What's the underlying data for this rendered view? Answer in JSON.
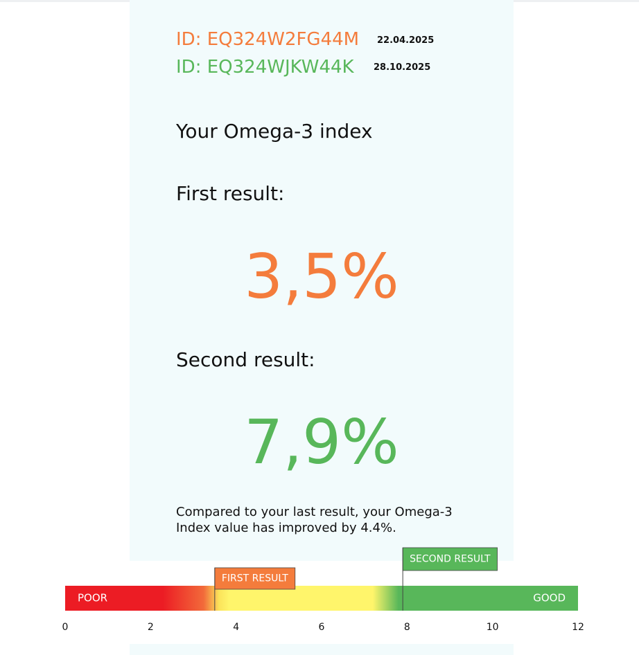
{
  "ids": [
    {
      "id": "ID: EQ324W2FG44M",
      "date": "22.04.2025"
    },
    {
      "id": "ID: EQ324WJKW44K",
      "date": "28.10.2025"
    }
  ],
  "title": "Your Omega-3 index",
  "results": [
    {
      "label": "First result:",
      "value": "3,5%"
    },
    {
      "label": "Second result:",
      "value": "7,9%"
    }
  ],
  "comparison": "Compared to your last result, your Omega-3 Index value has improved by 4.4%.",
  "scale": {
    "xlim": [
      0,
      12
    ],
    "xticks": [
      0,
      2,
      4,
      6,
      8,
      10,
      12
    ],
    "poor_label": "POOR",
    "good_label": "GOOD",
    "markers": [
      {
        "label": "FIRST RESULT",
        "value": 3.5,
        "color": "#f47c3c"
      },
      {
        "label": "SECOND RESULT",
        "value": 7.9,
        "color": "#58b75a"
      }
    ]
  }
}
